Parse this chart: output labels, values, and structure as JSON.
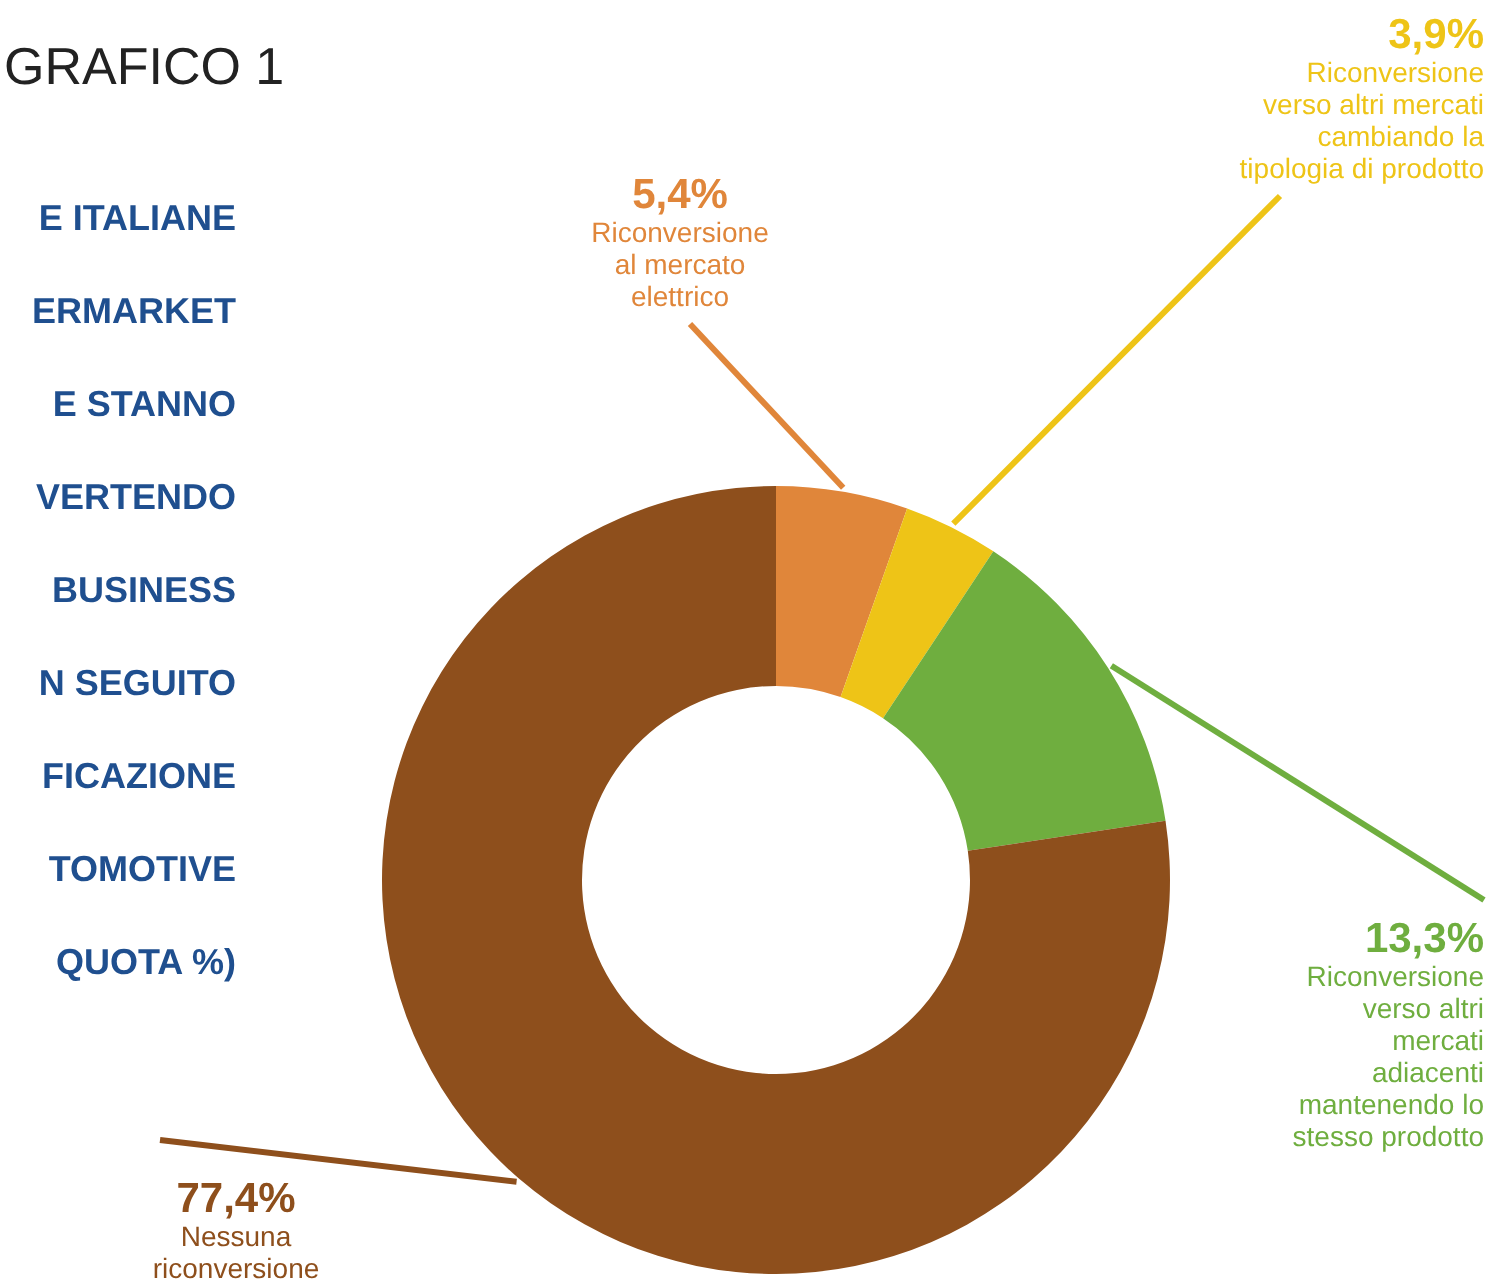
{
  "chart_data": {
    "type": "donut",
    "title": "GRAFICO 1",
    "subtitle": "E ITALIANE\nERMARKET\nE STANNO\nVERTENDO\nBUSINESS\nN SEGUITO\nFICAZIONE\nTOMOTIVE\nQUOTA %)",
    "categories": [
      "Riconversione\nal mercato\nelettrico",
      "Riconversione\nverso altri mercati\ncambiando la\ntipologia di prodotto",
      "Riconversione\nverso altri\nmercati\nadiacenti\nmantenendo lo\nstesso prodotto",
      "Nessuna\nriconversione"
    ],
    "values": [
      5.4,
      3.9,
      13.3,
      77.4
    ],
    "value_labels": [
      "5,4%",
      "3,9%",
      "13,3%",
      "77,4%"
    ],
    "colors": [
      "#e0863a",
      "#eec417",
      "#6fae3f",
      "#8e4f1c"
    ]
  }
}
